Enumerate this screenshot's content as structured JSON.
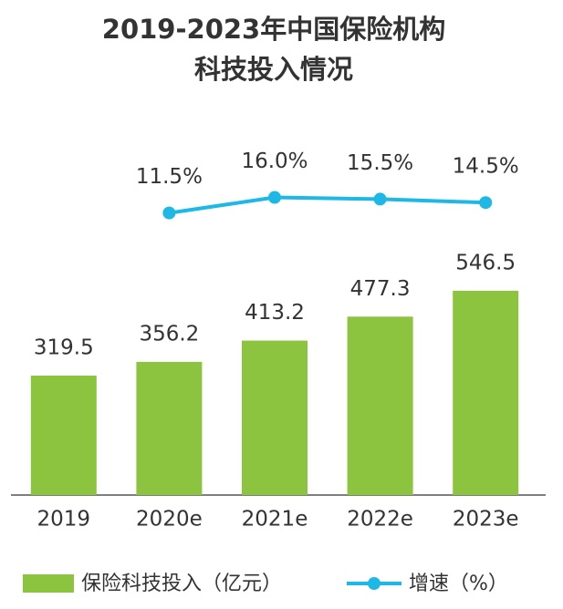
{
  "chart_data": {
    "type": "bar-line",
    "title": [
      "2019-2023年中国保险机构",
      "科技投入情况"
    ],
    "categories": [
      "2019",
      "2020e",
      "2021e",
      "2022e",
      "2023e"
    ],
    "series": [
      {
        "name": "保险科技投入（亿元）",
        "type": "bar",
        "color": "#8cc43f",
        "values": [
          319.5,
          356.2,
          413.2,
          477.3,
          546.5
        ]
      },
      {
        "name": "增速（%）",
        "type": "line",
        "axis": "y2",
        "color": "#1db8e6",
        "values": [
          null,
          11.5,
          16.0,
          15.5,
          14.5
        ],
        "value_labels": [
          null,
          "11.5%",
          "16.0%",
          "15.5%",
          "14.5%"
        ]
      }
    ],
    "ylim": [
      0,
      1000
    ],
    "y2lim": [
      -70,
      38
    ]
  }
}
